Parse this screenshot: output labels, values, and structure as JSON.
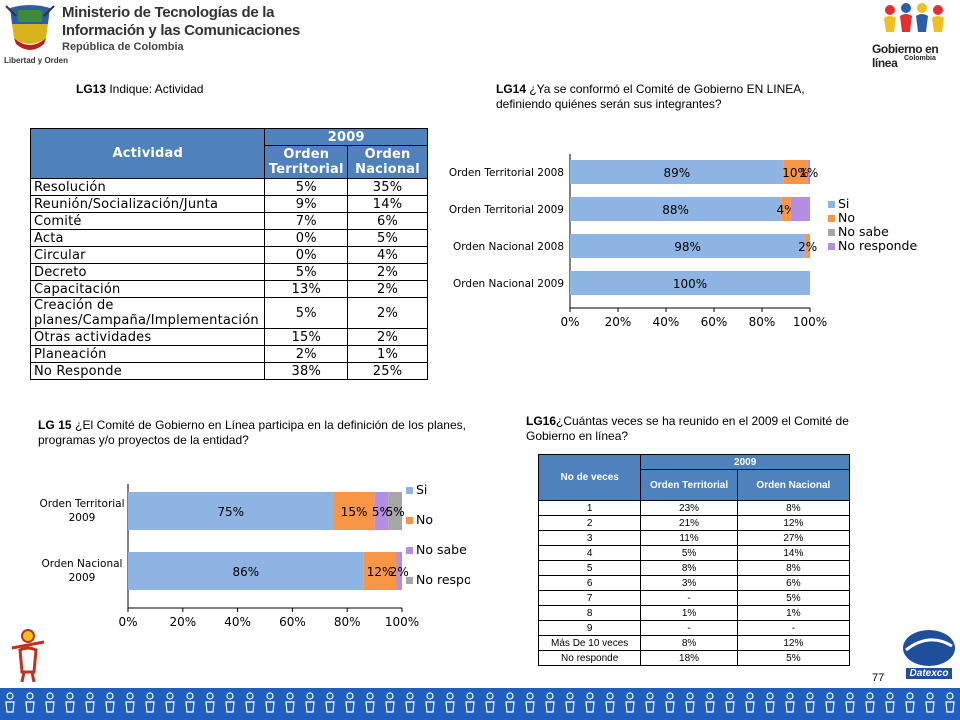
{
  "header": {
    "ministry_line1": "Ministerio de Tecnologías de la",
    "ministry_line2": "Información y las Comunicaciones",
    "ministry_line3": "República de Colombia",
    "motto": "Libertad y Orden",
    "gel_title": "Gobierno en línea",
    "gel_sub": "Colombia"
  },
  "q13": {
    "code": "LG13",
    "text": " Indique: Actividad"
  },
  "q14": {
    "code": "LG14",
    "text": " ¿Ya se conformó el Comité de Gobierno EN LINEA, definiendo quiénes serán sus integrantes?"
  },
  "q15": {
    "code": "LG 15",
    "text": " ¿El Comité de Gobierno en Línea participa en la definición de los planes, programas y/o proyectos de la entidad?"
  },
  "q16": {
    "code": "LG16",
    "text": "¿Cuántas veces se ha reunido en el 2009 el Comité de Gobierno en línea?"
  },
  "table1": {
    "col_actividad": "Actividad",
    "year": "2009",
    "col_territorial": "Orden Territorial",
    "col_nacional": "Orden Nacional",
    "rows": [
      [
        "Resolución",
        "5%",
        "35%"
      ],
      [
        "Reunión/Socialización/Junta",
        "9%",
        "14%"
      ],
      [
        "Comité",
        "7%",
        "6%"
      ],
      [
        "Acta",
        "0%",
        "5%"
      ],
      [
        "Circular",
        "0%",
        "4%"
      ],
      [
        "Decreto",
        "5%",
        "2%"
      ],
      [
        "Capacitación",
        "13%",
        "2%"
      ],
      [
        "Creación de planes/Campaña/Implementación",
        "5%",
        "2%"
      ],
      [
        "Otras actividades",
        "15%",
        "2%"
      ],
      [
        "Planeación",
        "2%",
        "1%"
      ],
      [
        "No Responde",
        "38%",
        "25%"
      ]
    ]
  },
  "table2": {
    "col_veces": "No de veces",
    "year": "2009",
    "col_territorial": "Orden Territorial",
    "col_nacional": "Orden Nacional",
    "rows": [
      [
        "1",
        "23%",
        "8%"
      ],
      [
        "2",
        "21%",
        "12%"
      ],
      [
        "3",
        "11%",
        "27%"
      ],
      [
        "4",
        "5%",
        "14%"
      ],
      [
        "5",
        "8%",
        "8%"
      ],
      [
        "6",
        "3%",
        "6%"
      ],
      [
        "7",
        "-",
        "5%"
      ],
      [
        "8",
        "1%",
        "1%"
      ],
      [
        "9",
        "-",
        "-"
      ],
      [
        "Más De 10 veces",
        "8%",
        "12%"
      ],
      [
        "No responde",
        "18%",
        "5%"
      ]
    ]
  },
  "chart_data": [
    {
      "type": "bar",
      "orientation": "horizontal",
      "stacked": true,
      "categories": [
        "Orden Territorial 2008",
        "Orden Territorial 2009",
        "Orden Nacional 2008",
        "Orden Nacional 2009"
      ],
      "series": [
        {
          "name": "Si",
          "values": [
            89,
            88,
            98,
            100
          ],
          "labels": [
            "89%",
            "88%",
            "98%",
            "100%"
          ],
          "color": "#8db4e2"
        },
        {
          "name": "No",
          "values": [
            10,
            4,
            2,
            0
          ],
          "labels": [
            "10%",
            "4%",
            "2%",
            ""
          ],
          "color": "#f79646"
        },
        {
          "name": "No sabe",
          "values": [
            0,
            0,
            0,
            0
          ],
          "labels": [
            "",
            "",
            "",
            ""
          ],
          "color": "#a6a6a6"
        },
        {
          "name": "No responde",
          "values": [
            1,
            8,
            0,
            0
          ],
          "labels": [
            "1%",
            "",
            "",
            ""
          ],
          "color": "#b48ee0"
        }
      ],
      "xticks": [
        "0%",
        "20%",
        "40%",
        "60%",
        "80%",
        "100%"
      ],
      "xlim": [
        0,
        100
      ],
      "legend": "right"
    },
    {
      "type": "bar",
      "orientation": "horizontal",
      "stacked": true,
      "categories": [
        "Orden Territorial 2009",
        "Orden Nacional 2009"
      ],
      "category_lines": [
        [
          "Orden Territorial",
          "2009"
        ],
        [
          "Orden Nacional",
          "2009"
        ]
      ],
      "series": [
        {
          "name": "Si",
          "values": [
            75,
            86
          ],
          "labels": [
            "75%",
            "86%"
          ],
          "color": "#8db4e2"
        },
        {
          "name": "No",
          "values": [
            15,
            12
          ],
          "labels": [
            "15%",
            "12%"
          ],
          "color": "#f79646"
        },
        {
          "name": "No sabe",
          "values": [
            5,
            2
          ],
          "labels": [
            "5%",
            "2%"
          ],
          "color": "#b48ee0"
        },
        {
          "name": "No responde",
          "values": [
            5,
            0
          ],
          "labels": [
            "5%",
            ""
          ],
          "color": "#a6a6a6"
        }
      ],
      "xticks": [
        "0%",
        "20%",
        "40%",
        "60%",
        "80%",
        "100%"
      ],
      "xlim": [
        0,
        100
      ],
      "legend": "right"
    }
  ],
  "footer": {
    "page_number": "77",
    "brand": "Datexco"
  }
}
